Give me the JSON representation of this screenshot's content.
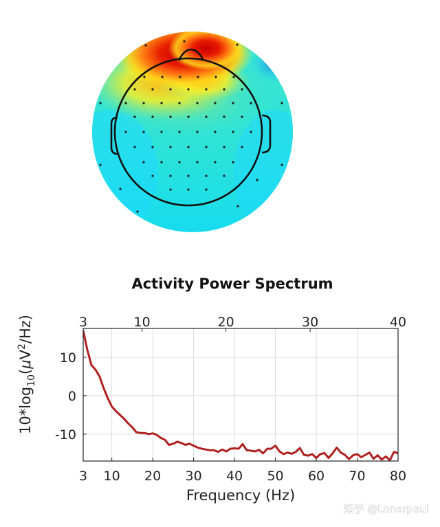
{
  "chart_data": [
    {
      "type": "heatmap",
      "title": "",
      "description_free": true,
      "color_scale": [
        "#1ad1ff",
        "#2ee8d6",
        "#8fe87a",
        "#fff01a",
        "#ff8a1a",
        "#c70000"
      ]
    },
    {
      "type": "line",
      "title": "Activity Power Spectrum",
      "xlabel": "Frequency (Hz)",
      "ylabel_parts": {
        "main": "10*log",
        "sub": "10",
        "open": "(",
        "mu": "μ",
        "v": "V",
        "sup": "2",
        "rest": "/Hz)"
      },
      "xlim": [
        3,
        80
      ],
      "ylim": [
        -17,
        17.5
      ],
      "xticks_bottom": [
        3,
        10,
        20,
        30,
        40,
        50,
        60,
        70,
        80
      ],
      "xticks_top": [
        {
          "label": "3",
          "pos": 3
        },
        {
          "label": "10",
          "pos": 17.4
        },
        {
          "label": "20",
          "pos": 37.9
        },
        {
          "label": "30",
          "pos": 58.5
        },
        {
          "label": "40",
          "pos": 80
        }
      ],
      "yticks": [
        10,
        0,
        -10
      ],
      "grid": true,
      "line_color": "#b01f1f",
      "series": [
        {
          "x": [
            3,
            4,
            5,
            6,
            7,
            8,
            9,
            10,
            11,
            12,
            13,
            14,
            15,
            16,
            17,
            18,
            19,
            20,
            21,
            22,
            23,
            24,
            25,
            26,
            27,
            28,
            29,
            30,
            31,
            32,
            33,
            34,
            35,
            36,
            37,
            38,
            39,
            40,
            41,
            42,
            43,
            44,
            45,
            46,
            47,
            48,
            49,
            50,
            51,
            52,
            53,
            54,
            55,
            56,
            57,
            58,
            59,
            60,
            61,
            62,
            63,
            64,
            65,
            66,
            67,
            68,
            69,
            70,
            71,
            72,
            73,
            74,
            75,
            76,
            77,
            78,
            79,
            80
          ],
          "y": [
            17,
            12,
            8,
            6.8,
            5,
            2,
            -0.6,
            -2.8,
            -4,
            -5,
            -6,
            -7.2,
            -8.2,
            -9.5,
            -9.7,
            -9.7,
            -10,
            -9.8,
            -10.2,
            -11,
            -11.5,
            -12.8,
            -12.5,
            -12,
            -12.3,
            -12.8,
            -12.5,
            -13,
            -13.5,
            -13.8,
            -14,
            -14.2,
            -14.2,
            -14.6,
            -14,
            -14.5,
            -13.8,
            -13.7,
            -13.8,
            -12.6,
            -14.2,
            -14.3,
            -14.5,
            -14.1,
            -15,
            -13.8,
            -13.8,
            -13,
            -14.5,
            -15.2,
            -14.8,
            -15.1,
            -14.6,
            -13.6,
            -15.4,
            -15.6,
            -15.2,
            -16.2,
            -15.2,
            -14.9,
            -16.2,
            -15,
            -13.5,
            -14.8,
            -15.4,
            -16.5,
            -15.5,
            -15.2,
            -16,
            -15.4,
            -14.8,
            -16.4,
            -15.5,
            -16.6,
            -15.8,
            -16.8,
            -14.6,
            -15
          ]
        }
      ]
    }
  ],
  "watermark": "知乎 @Lonerpaul"
}
